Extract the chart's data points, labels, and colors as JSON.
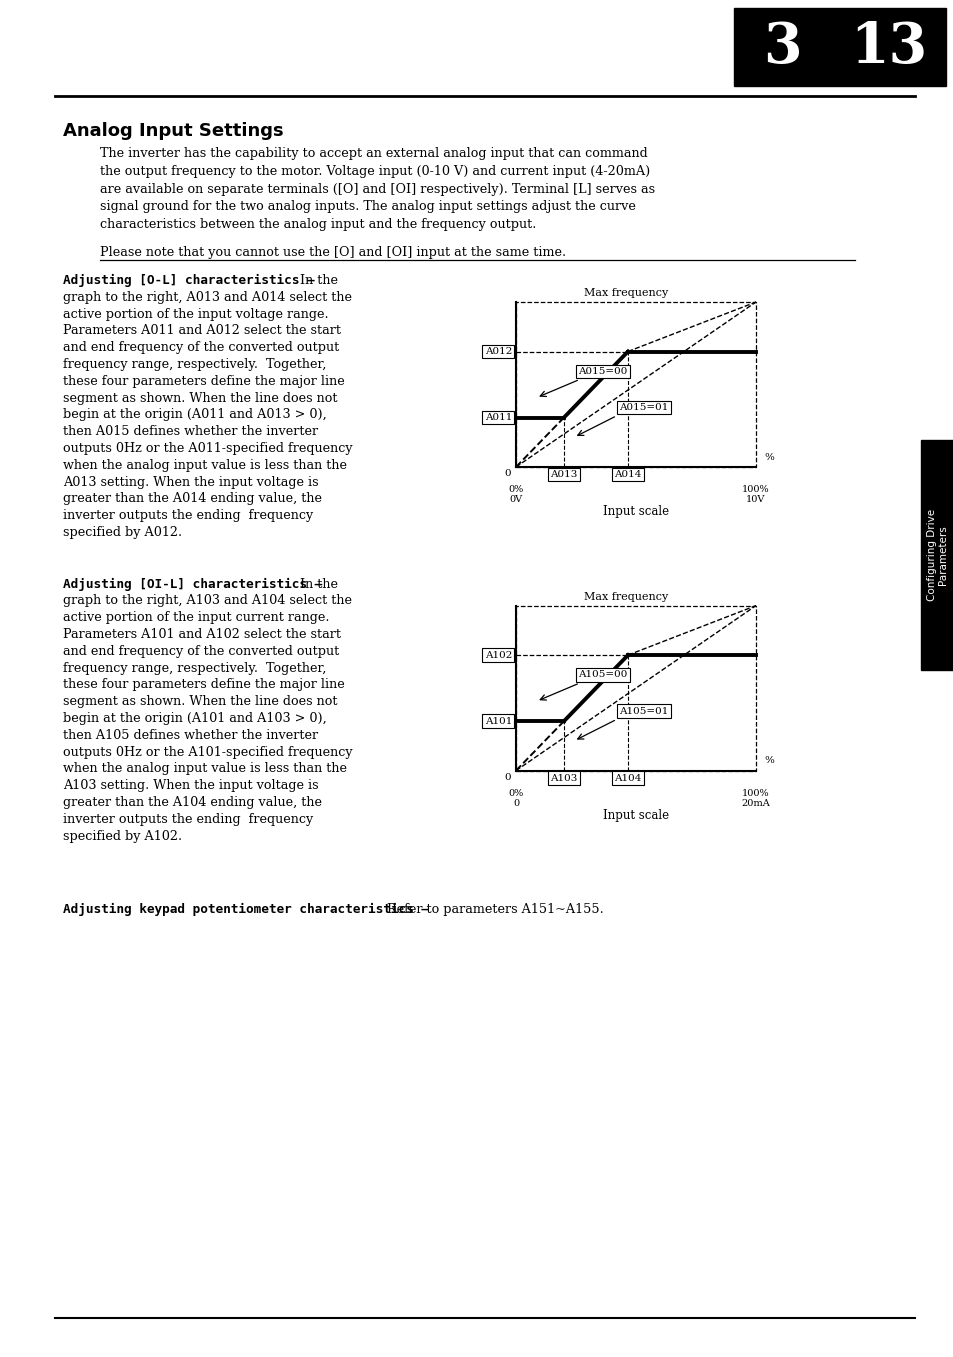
{
  "page_bg": "#ffffff",
  "title": "Analog Input Settings",
  "body_text_1": "The inverter has the capability to accept an external analog input that can command\nthe output frequency to the motor. Voltage input (0-10 V) and current input (4-20mA)\nare available on separate terminals ([O] and [OI] respectively). Terminal [L] serves as\nsignal ground for the two analog inputs. The analog input settings adjust the curve\ncharacteristics between the analog input and the frequency output.",
  "underline_text": "Please note that you cannot use the [O] and [OI] input at the same time.",
  "section1_bold": "Adjusting [O-L] characteristics –",
  "section1_rest": " In the",
  "section1_lines": [
    "graph to the right, A013 and A014 select the",
    "active portion of the input voltage range.",
    "Parameters A011 and A012 select the start",
    "and end frequency of the converted output",
    "frequency range, respectively.  Together,",
    "these four parameters define the major line",
    "segment as shown. When the line does not",
    "begin at the origin (A011 and A013 > 0),",
    "then A015 defines whether the inverter",
    "outputs 0Hz or the A011-specified frequency",
    "when the analog input value is less than the",
    "A013 setting. When the input voltage is",
    "greater than the A014 ending value, the",
    "inverter outputs the ending  frequency",
    "specified by A012."
  ],
  "section2_bold": "Adjusting [OI-L] characteristics –",
  "section2_rest": " In the",
  "section2_lines": [
    "graph to the right, A103 and A104 select the",
    "active portion of the input current range.",
    "Parameters A101 and A102 select the start",
    "and end frequency of the converted output",
    "frequency range, respectively.  Together,",
    "these four parameters define the major line",
    "segment as shown. When the line does not",
    "begin at the origin (A101 and A103 > 0),",
    "then A105 defines whether the inverter",
    "outputs 0Hz or the A101-specified frequency",
    "when the analog input value is less than the",
    "A103 setting. When the input voltage is",
    "greater than the A104 ending value, the",
    "inverter outputs the ending  frequency",
    "specified by A102."
  ],
  "section3_bold": "Adjusting keypad potentiometer characteristics –",
  "section3_rest": " Refer to parameters A151~A155.",
  "sidebar_text": "Configuring Drive\nParameters",
  "graph1_title": "Max frequency",
  "graph1_xlabel": "Input scale",
  "graph1_labels_y": [
    "A012",
    "A011"
  ],
  "graph1_labels_x": [
    "A013",
    "A014"
  ],
  "graph1_labels_line": [
    "A015=00",
    "A015=01"
  ],
  "graph1_xmin": "0%\n0V",
  "graph1_xmax": "100%\n10V",
  "graph2_title": "Max frequency",
  "graph2_xlabel": "Input scale",
  "graph2_labels_y": [
    "A102",
    "A101"
  ],
  "graph2_labels_x": [
    "A103",
    "A104"
  ],
  "graph2_labels_line": [
    "A105=00",
    "A105=01"
  ],
  "graph2_xmin": "0%\n0",
  "graph2_xmax": "100%\n20mA"
}
